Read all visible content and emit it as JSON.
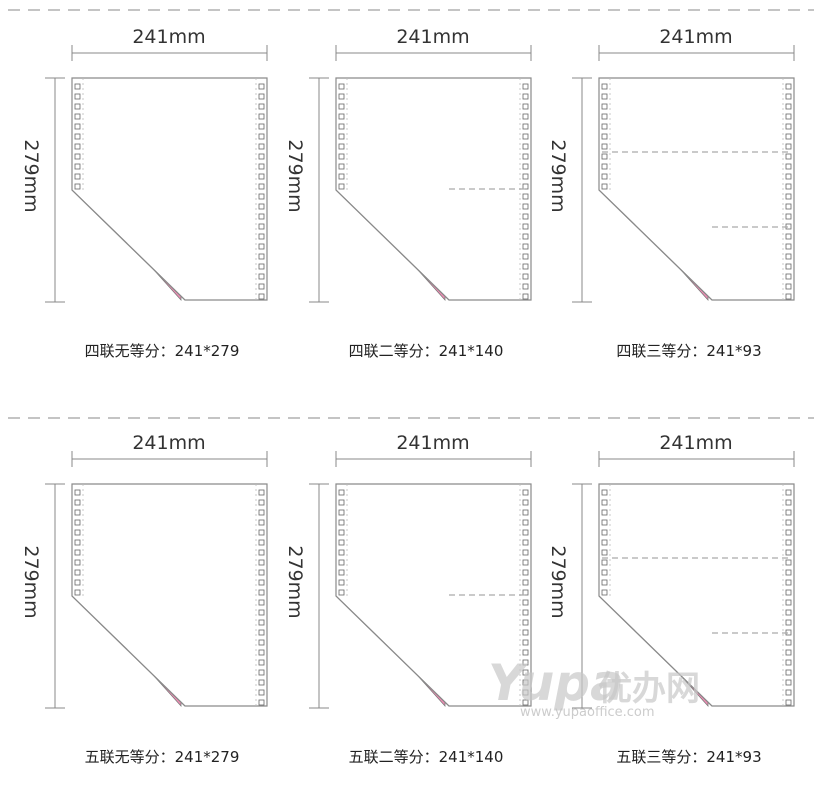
{
  "colors": {
    "paper_stroke": "#8a8a8a",
    "dashed_line": "#aaaaaa",
    "ply_pink": "#f08cb4",
    "ply_blue": "#7fc6ea",
    "ply_green": "#7ccf8e",
    "ply_yellow": "#fff2a0"
  },
  "panels": [
    {
      "width_label": "241mm",
      "height_label": "279mm",
      "plies": [
        "ply_pink",
        "ply_blue",
        "ply_yellow"
      ],
      "equal_parts": 1,
      "caption": "四联无等分：241*279"
    },
    {
      "width_label": "241mm",
      "height_label": "279mm",
      "plies": [
        "ply_pink",
        "ply_blue",
        "ply_yellow"
      ],
      "equal_parts": 2,
      "caption": "四联二等分：241*140"
    },
    {
      "width_label": "241mm",
      "height_label": "279mm",
      "plies": [
        "ply_pink",
        "ply_blue",
        "ply_yellow"
      ],
      "equal_parts": 3,
      "caption": "四联三等分：241*93"
    },
    {
      "width_label": "241mm",
      "height_label": "279mm",
      "plies": [
        "ply_pink",
        "ply_green",
        "ply_blue",
        "ply_yellow"
      ],
      "equal_parts": 1,
      "caption": "五联无等分：241*279"
    },
    {
      "width_label": "241mm",
      "height_label": "279mm",
      "plies": [
        "ply_pink",
        "ply_green",
        "ply_blue",
        "ply_yellow"
      ],
      "equal_parts": 2,
      "caption": "五联二等分：241*140"
    },
    {
      "width_label": "241mm",
      "height_label": "279mm",
      "plies": [
        "ply_pink",
        "ply_green",
        "ply_blue",
        "ply_yellow"
      ],
      "equal_parts": 3,
      "caption": "五联三等分：241*93"
    }
  ],
  "watermark": {
    "brand": "Yupa",
    "brand_cn": "优办网",
    "url": "www.yupaoffice.com"
  }
}
